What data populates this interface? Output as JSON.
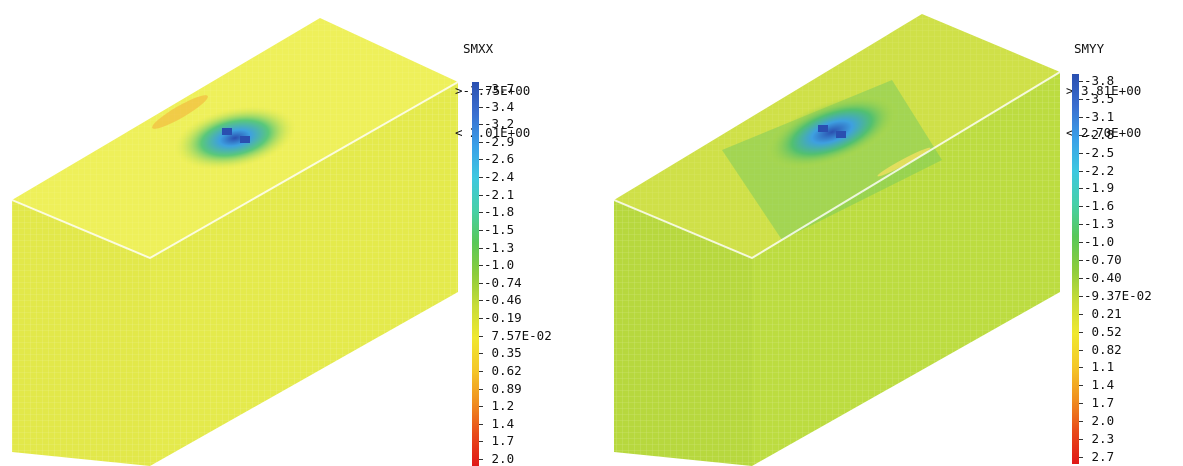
{
  "panels": [
    {
      "variable": "SMXX",
      "max_line": ">-3.75E+00",
      "min_line": "< 2.01E+00",
      "ticks": [
        "-3.7",
        "-3.4",
        "-3.2",
        "-2.9",
        "-2.6",
        "-2.4",
        "-2.1",
        "-1.8",
        "-1.5",
        "-1.3",
        "-1.0",
        "-0.74",
        "-0.46",
        "-0.19",
        "7.57E-02",
        "0.35",
        "0.62",
        "0.89",
        "1.2",
        "1.4",
        "1.7",
        "2.0"
      ],
      "body_color": "#e2e84a",
      "top_color": "#eef05a"
    },
    {
      "variable": "SMYY",
      "max_line": ">-3.81E+00",
      "min_line": "< 2.70E+00",
      "ticks": [
        "-3.8",
        "-3.5",
        "-3.1",
        "-2.8",
        "-2.5",
        "-2.2",
        "-1.9",
        "-1.6",
        "-1.3",
        "-1.0",
        "-0.70",
        "-0.40",
        "-9.37E-02",
        "0.21",
        "0.52",
        "0.82",
        "1.1",
        "1.4",
        "1.7",
        "2.0",
        "2.3",
        "2.7"
      ],
      "body_color": "#b7d83e",
      "top_color": "#cfe048"
    }
  ],
  "colorscale": [
    "#2a4fb0",
    "#3a6fd0",
    "#3aa0e8",
    "#3ec8e0",
    "#46d0a8",
    "#58c858",
    "#8ccc3c",
    "#c8dc38",
    "#f0e830",
    "#f4c828",
    "#f09020",
    "#e84a1a",
    "#e01818"
  ]
}
